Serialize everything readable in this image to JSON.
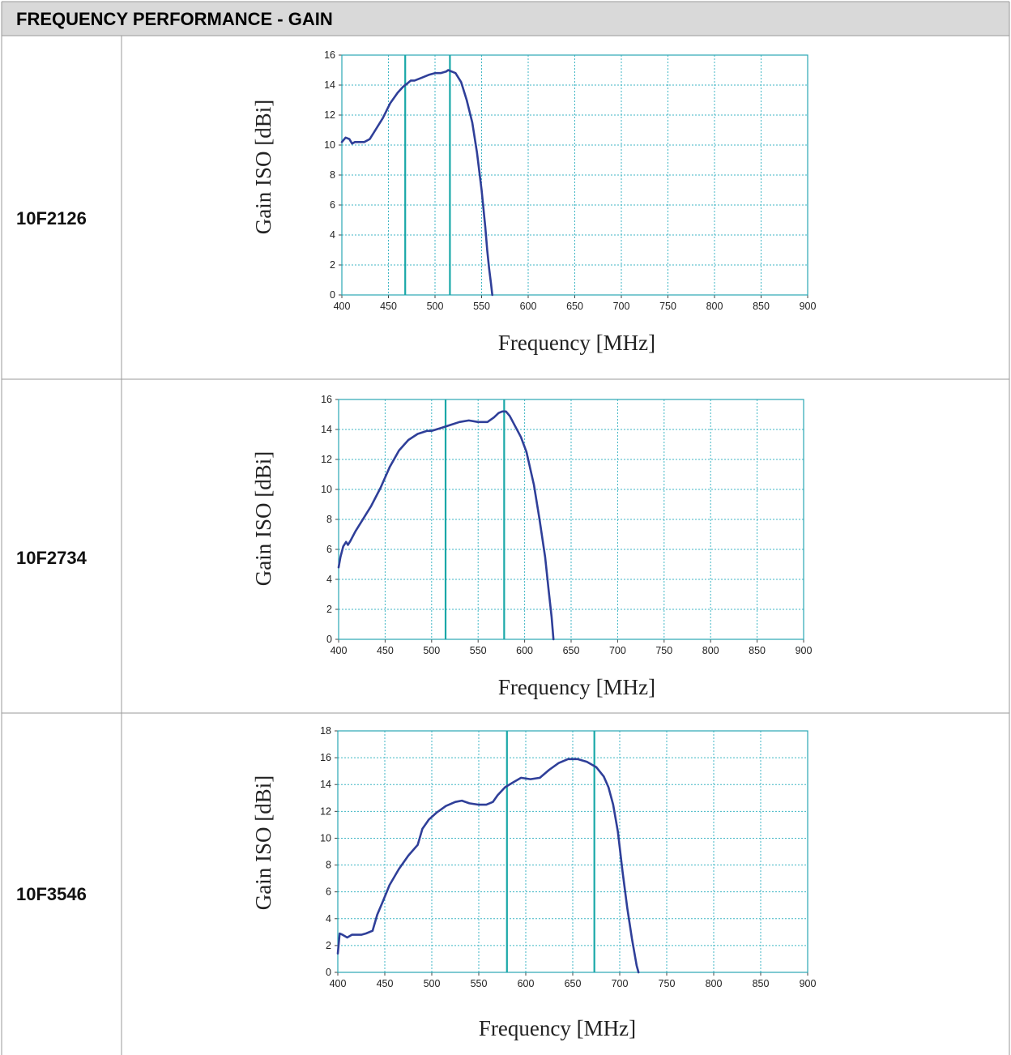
{
  "header": {
    "title": "FREQUENCY PERFORMANCE - GAIN"
  },
  "chart_data": [
    {
      "type": "line",
      "row_label": "10F2126",
      "xlabel": "Frequency [MHz]",
      "ylabel": "Gain ISO [dBi]",
      "xlim": [
        400,
        900
      ],
      "ylim": [
        0,
        16
      ],
      "x_ticks": [
        400,
        450,
        500,
        550,
        600,
        650,
        700,
        750,
        800,
        850,
        900
      ],
      "y_ticks": [
        0,
        2,
        4,
        6,
        8,
        10,
        12,
        14,
        16
      ],
      "grid": true,
      "markers_x": [
        468,
        516
      ],
      "series": [
        {
          "x": [
            400,
            404,
            408,
            411,
            414,
            418,
            424,
            430,
            436,
            444,
            452,
            460,
            466,
            470,
            474,
            478,
            486,
            494,
            500,
            506,
            512,
            514,
            518,
            522,
            528,
            534,
            540,
            545,
            550,
            554,
            556,
            558,
            560,
            561.5
          ],
          "y": [
            10.2,
            10.5,
            10.4,
            10.1,
            10.2,
            10.2,
            10.2,
            10.4,
            11.0,
            11.8,
            12.8,
            13.5,
            13.9,
            14.1,
            14.3,
            14.3,
            14.5,
            14.7,
            14.8,
            14.8,
            14.9,
            15.0,
            14.9,
            14.8,
            14.2,
            13.0,
            11.5,
            9.5,
            7.0,
            4.5,
            3.0,
            1.8,
            0.8,
            0
          ]
        }
      ]
    },
    {
      "type": "line",
      "row_label": "10F2734",
      "xlabel": "Frequency [MHz]",
      "ylabel": "Gain ISO [dBi]",
      "xlim": [
        400,
        900
      ],
      "ylim": [
        0,
        16
      ],
      "x_ticks": [
        400,
        450,
        500,
        550,
        600,
        650,
        700,
        750,
        800,
        850,
        900
      ],
      "y_ticks": [
        0,
        2,
        4,
        6,
        8,
        10,
        12,
        14,
        16
      ],
      "grid": true,
      "markers_x": [
        515,
        578
      ],
      "series": [
        {
          "x": [
            400,
            402,
            405,
            408,
            410,
            413,
            418,
            425,
            435,
            445,
            455,
            465,
            475,
            485,
            495,
            500,
            510,
            520,
            530,
            540,
            550,
            560,
            567,
            572,
            576,
            580,
            584,
            590,
            596,
            602,
            610,
            616,
            622,
            626,
            629,
            631
          ],
          "y": [
            4.8,
            5.5,
            6.2,
            6.5,
            6.3,
            6.6,
            7.2,
            7.9,
            8.9,
            10.1,
            11.5,
            12.6,
            13.3,
            13.7,
            13.9,
            13.9,
            14.1,
            14.3,
            14.5,
            14.6,
            14.5,
            14.5,
            14.8,
            15.1,
            15.2,
            15.2,
            14.9,
            14.2,
            13.5,
            12.5,
            10.3,
            8.0,
            5.5,
            3.2,
            1.5,
            0
          ]
        }
      ]
    },
    {
      "type": "line",
      "row_label": "10F3546",
      "xlabel": "Frequency [MHz]",
      "ylabel": "Gain ISO [dBi]",
      "xlim": [
        400,
        900
      ],
      "ylim": [
        0,
        18
      ],
      "x_ticks": [
        400,
        450,
        500,
        550,
        600,
        650,
        700,
        750,
        800,
        850,
        900
      ],
      "y_ticks": [
        0,
        2,
        4,
        6,
        8,
        10,
        12,
        14,
        16,
        18
      ],
      "grid": true,
      "markers_x": [
        580,
        673
      ],
      "series": [
        {
          "x": [
            400,
            402,
            405,
            410,
            415,
            420,
            425,
            430,
            437,
            442,
            448,
            455,
            465,
            475,
            485,
            490,
            497,
            505,
            515,
            525,
            532,
            540,
            550,
            558,
            565,
            570,
            578,
            585,
            595,
            605,
            615,
            625,
            635,
            645,
            655,
            665,
            675,
            683,
            688,
            693,
            698,
            703,
            708,
            713,
            718,
            720
          ],
          "y": [
            1.4,
            2.9,
            2.8,
            2.6,
            2.8,
            2.8,
            2.8,
            2.9,
            3.1,
            4.3,
            5.3,
            6.5,
            7.7,
            8.7,
            9.5,
            10.7,
            11.4,
            11.9,
            12.4,
            12.7,
            12.8,
            12.6,
            12.5,
            12.5,
            12.7,
            13.2,
            13.8,
            14.1,
            14.5,
            14.4,
            14.5,
            15.1,
            15.6,
            15.9,
            15.9,
            15.7,
            15.3,
            14.6,
            13.8,
            12.5,
            10.5,
            7.5,
            4.8,
            2.5,
            0.5,
            0
          ]
        }
      ]
    }
  ]
}
